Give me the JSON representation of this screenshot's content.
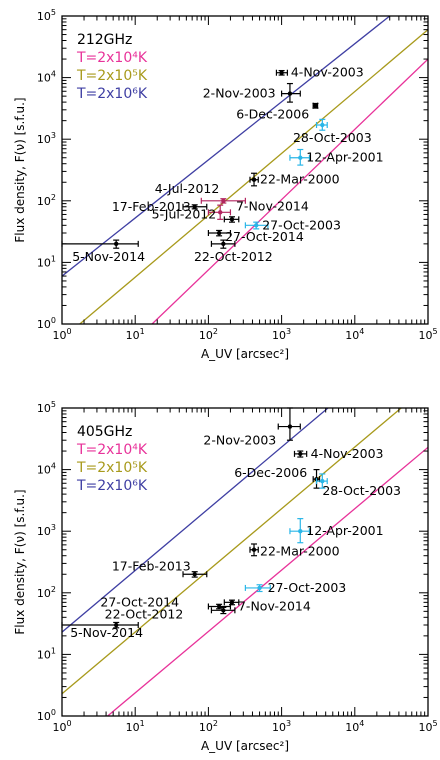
{
  "chart_data": [
    {
      "type": "scatter",
      "title": "212GHz",
      "xlabel": "A_UV [arcsec²]",
      "ylabel": "Flux density, F(ν) [s.f.u.]",
      "x_scale": "log",
      "y_scale": "log",
      "xlim": [
        1,
        100000
      ],
      "ylim": [
        1,
        100000
      ],
      "grid": false,
      "legend_position": "top-left",
      "x_ticks": [
        {
          "v": 1,
          "m": "10",
          "e": "0"
        },
        {
          "v": 10,
          "m": "10",
          "e": "1"
        },
        {
          "v": 100,
          "m": "10",
          "e": "2"
        },
        {
          "v": 1000,
          "m": "10",
          "e": "3"
        },
        {
          "v": 10000,
          "m": "10",
          "e": "4"
        },
        {
          "v": 100000,
          "m": "10",
          "e": "5"
        }
      ],
      "y_ticks": [
        {
          "v": 1,
          "m": "10",
          "e": "0"
        },
        {
          "v": 10,
          "m": "10",
          "e": "1"
        },
        {
          "v": 100,
          "m": "10",
          "e": "2"
        },
        {
          "v": 1000,
          "m": "10",
          "e": "3"
        },
        {
          "v": 10000,
          "m": "10",
          "e": "4"
        },
        {
          "v": 100000,
          "m": "10",
          "e": "5"
        }
      ],
      "lines": [
        {
          "name": "T=2x10⁴K",
          "color": "#e8339a",
          "points": [
            [
              17,
              1
            ],
            [
              100000,
              20000
            ]
          ]
        },
        {
          "name": "T=2x10⁵K",
          "color": "#a89a1c",
          "points": [
            [
              1.75,
              1
            ],
            [
              100000,
              60000
            ]
          ]
        },
        {
          "name": "T=2x10⁶K",
          "color": "#3f3fa3",
          "points": [
            [
              1,
              6
            ],
            [
              30000,
              100000
            ]
          ]
        }
      ],
      "points": [
        {
          "label": "4-Nov-2003",
          "x": 1000,
          "y": 12000,
          "xerr": [
            850,
            1200
          ],
          "yerr": [
            11000,
            13000
          ],
          "color": "#000000"
        },
        {
          "label": "2-Nov-2003",
          "x": 1300,
          "y": 5500,
          "xerr": [
            1000,
            1800
          ],
          "yerr": [
            4000,
            8000
          ],
          "color": "#000000"
        },
        {
          "label": "6-Dec-2006",
          "x": 2900,
          "y": 3500,
          "xerr": [
            2700,
            3100
          ],
          "yerr": [
            3200,
            3800
          ],
          "color": "#000000"
        },
        {
          "label": "28-Oct-2003",
          "x": 3600,
          "y": 1700,
          "xerr": [
            3000,
            4200
          ],
          "yerr": [
            1400,
            2100
          ],
          "color": "#29b6e8"
        },
        {
          "label": "12-Apr-2001",
          "x": 1800,
          "y": 500,
          "xerr": [
            1300,
            2400
          ],
          "yerr": [
            380,
            680
          ],
          "color": "#29b6e8"
        },
        {
          "label": "22-Mar-2000",
          "x": 420,
          "y": 220,
          "xerr": [
            370,
            480
          ],
          "yerr": [
            175,
            280
          ],
          "color": "#000000"
        },
        {
          "label": "4-Jul-2012",
          "x": 160,
          "y": 100,
          "xerr": [
            80,
            320
          ],
          "yerr": [
            92,
            108
          ],
          "color": "#b2245f"
        },
        {
          "label": "17-Feb-2013",
          "x": 65,
          "y": 80,
          "xerr": [
            45,
            95
          ],
          "yerr": [
            74,
            86
          ],
          "color": "#000000"
        },
        {
          "label": "5-Jul-2012",
          "x": 145,
          "y": 65,
          "xerr": [
            100,
            200
          ],
          "yerr": [
            50,
            85
          ],
          "color": "#b2245f"
        },
        {
          "label": "7-Nov-2014",
          "x": 210,
          "y": 50,
          "xerr": [
            165,
            260
          ],
          "yerr": [
            45,
            55
          ],
          "color": "#000000"
        },
        {
          "label": "27-Oct-2003",
          "x": 450,
          "y": 40,
          "xerr": [
            320,
            650
          ],
          "yerr": [
            35,
            45
          ],
          "color": "#29b6e8"
        },
        {
          "label": "27-Oct-2014",
          "x": 140,
          "y": 30,
          "xerr": [
            100,
            200
          ],
          "yerr": [
            27,
            33
          ],
          "color": "#000000"
        },
        {
          "label": "22-Oct-2012",
          "x": 160,
          "y": 20,
          "xerr": [
            110,
            230
          ],
          "yerr": [
            17,
            23
          ],
          "color": "#000000"
        },
        {
          "label": "5-Nov-2014",
          "x": 5.5,
          "y": 20,
          "xerr": [
            1,
            11
          ],
          "yerr": [
            17,
            23
          ],
          "color": "#000000"
        }
      ]
    },
    {
      "type": "scatter",
      "title": "405GHz",
      "xlabel": "A_UV [arcsec²]",
      "ylabel": "Flux density, F(ν) [s.f.u.]",
      "x_scale": "log",
      "y_scale": "log",
      "xlim": [
        1,
        100000
      ],
      "ylim": [
        1,
        100000
      ],
      "grid": false,
      "legend_position": "top-left",
      "x_ticks": [
        {
          "v": 1,
          "m": "10",
          "e": "0"
        },
        {
          "v": 10,
          "m": "10",
          "e": "1"
        },
        {
          "v": 100,
          "m": "10",
          "e": "2"
        },
        {
          "v": 1000,
          "m": "10",
          "e": "3"
        },
        {
          "v": 10000,
          "m": "10",
          "e": "4"
        },
        {
          "v": 100000,
          "m": "10",
          "e": "5"
        }
      ],
      "y_ticks": [
        {
          "v": 1,
          "m": "10",
          "e": "0"
        },
        {
          "v": 10,
          "m": "10",
          "e": "1"
        },
        {
          "v": 100,
          "m": "10",
          "e": "2"
        },
        {
          "v": 1000,
          "m": "10",
          "e": "3"
        },
        {
          "v": 10000,
          "m": "10",
          "e": "4"
        },
        {
          "v": 100000,
          "m": "10",
          "e": "5"
        }
      ],
      "lines": [
        {
          "name": "T=2x10⁴K",
          "color": "#e8339a",
          "points": [
            [
              4.2,
              1
            ],
            [
              100000,
              23000
            ]
          ]
        },
        {
          "name": "T=2x10⁵K",
          "color": "#a89a1c",
          "points": [
            [
              1,
              2.3
            ],
            [
              43000,
              100000
            ]
          ]
        },
        {
          "name": "T=2x10⁶K",
          "color": "#3f3fa3",
          "points": [
            [
              1,
              23
            ],
            [
              4300,
              100000
            ]
          ]
        }
      ],
      "points": [
        {
          "label": "2-Nov-2003",
          "x": 1300,
          "y": 50000,
          "xerr": [
            900,
            1800
          ],
          "yerr": [
            30000,
            100000
          ],
          "color": "#000000"
        },
        {
          "label": "4-Nov-2003",
          "x": 1800,
          "y": 18000,
          "xerr": [
            1500,
            2200
          ],
          "yerr": [
            16000,
            20000
          ],
          "color": "#000000"
        },
        {
          "label": "6-Dec-2006",
          "x": 3000,
          "y": 7000,
          "xerr": [
            2700,
            3300
          ],
          "yerr": [
            5000,
            10000
          ],
          "color": "#000000"
        },
        {
          "label": "28-Oct-2003",
          "x": 3600,
          "y": 6500,
          "xerr": [
            3000,
            4200
          ],
          "yerr": [
            5000,
            8500
          ],
          "color": "#29b6e8"
        },
        {
          "label": "12-Apr-2001",
          "x": 1800,
          "y": 1000,
          "xerr": [
            1300,
            2400
          ],
          "yerr": [
            650,
            1600
          ],
          "color": "#29b6e8"
        },
        {
          "label": "22-Mar-2000",
          "x": 420,
          "y": 500,
          "xerr": [
            370,
            480
          ],
          "yerr": [
            400,
            620
          ],
          "color": "#000000"
        },
        {
          "label": "17-Feb-2013",
          "x": 65,
          "y": 200,
          "xerr": [
            45,
            95
          ],
          "yerr": [
            180,
            220
          ],
          "color": "#000000"
        },
        {
          "label": "27-Oct-2003",
          "x": 500,
          "y": 120,
          "xerr": [
            320,
            700
          ],
          "yerr": [
            105,
            135
          ],
          "color": "#29b6e8"
        },
        {
          "label": "7-Nov-2014",
          "x": 210,
          "y": 70,
          "xerr": [
            165,
            260
          ],
          "yerr": [
            64,
            76
          ],
          "color": "#000000"
        },
        {
          "label": "27-Oct-2014",
          "x": 140,
          "y": 60,
          "xerr": [
            100,
            200
          ],
          "yerr": [
            55,
            65
          ],
          "color": "#000000"
        },
        {
          "label": "22-Oct-2012",
          "x": 160,
          "y": 52,
          "xerr": [
            110,
            230
          ],
          "yerr": [
            46,
            58
          ],
          "color": "#000000"
        },
        {
          "label": "5-Nov-2014",
          "x": 5.5,
          "y": 30,
          "xerr": [
            1,
            11
          ],
          "yerr": [
            27,
            33
          ],
          "color": "#000000"
        }
      ]
    }
  ]
}
